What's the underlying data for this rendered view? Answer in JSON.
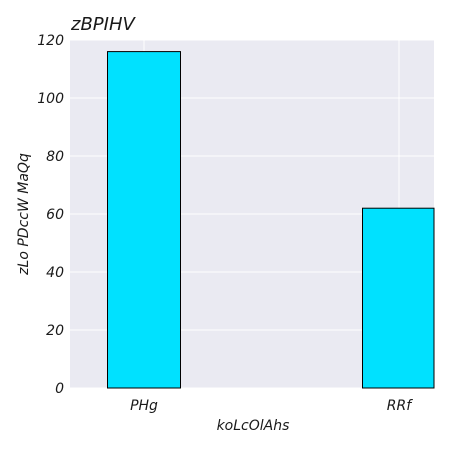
{
  "chart_data": {
    "type": "bar",
    "title": "zBPIHV",
    "xlabel": "koLcOlAhs",
    "ylabel": "zLo PDccW MaQq",
    "categories": [
      "PHg",
      "RRf"
    ],
    "values": [
      116,
      62
    ],
    "ylim": [
      0,
      120
    ],
    "yticks": [
      0,
      20,
      40,
      60,
      80,
      100,
      120
    ],
    "grid": true,
    "colors": {
      "bar": "#00e1ff",
      "background": "#eaeaf2",
      "grid": "#ffffff"
    }
  }
}
